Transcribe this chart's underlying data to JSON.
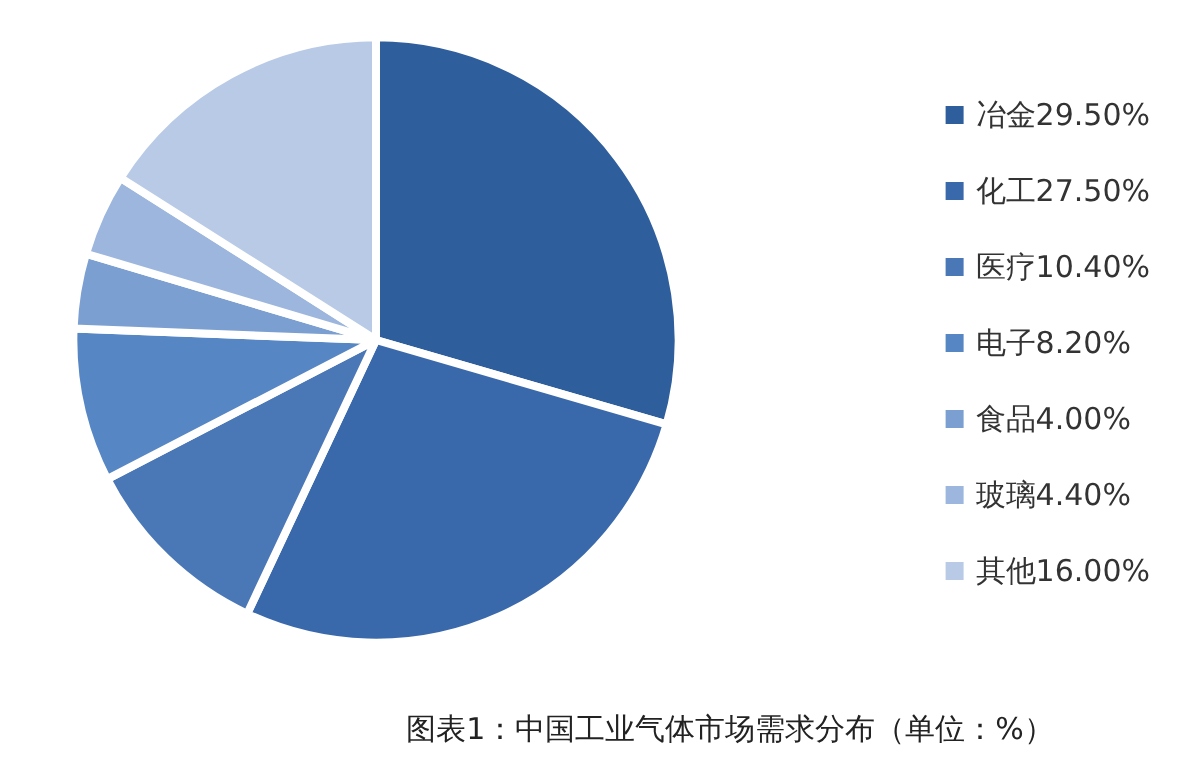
{
  "chart_data": {
    "type": "pie",
    "title": "图表1：中国工业气体市场需求分布（单位：%）",
    "categories": [
      "冶金29.50%",
      "化工27.50%",
      "医疗10.40%",
      "电子8.20%",
      "食品4.00%",
      "玻璃4.40%",
      "其他16.00%"
    ],
    "values": [
      29.5,
      27.5,
      10.4,
      8.2,
      4.0,
      4.4,
      16.0
    ],
    "colors": [
      "#2f5e9c",
      "#3a69ab",
      "#4a77b6",
      "#5686c3",
      "#7b9fd1",
      "#9cb6de",
      "#b8cae6"
    ],
    "legend": "right"
  }
}
